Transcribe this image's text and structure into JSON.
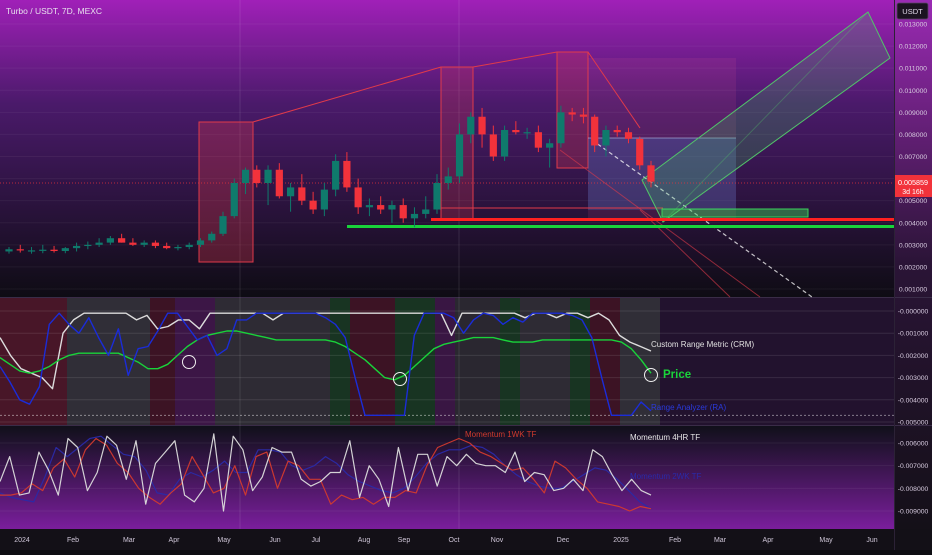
{
  "symbol_label": "Turbo / USDT, 7D, MEXC",
  "currency_button": "USDT",
  "price_badge": {
    "price": "0.005859",
    "countdown": "3d 16h"
  },
  "x_tick_labels": [
    "2024",
    "Feb",
    "Mar",
    "Apr",
    "May",
    "Jun",
    "Jul",
    "Aug",
    "Sep",
    "Oct",
    "Nov",
    "Dec",
    "2025",
    "Feb",
    "Mar",
    "Apr",
    "May",
    "Jun"
  ],
  "panels": {
    "price": {
      "y_tick_labels": [
        "0.013000",
        "0.012000",
        "0.011000",
        "0.010000",
        "0.009000",
        "0.008000",
        "0.007000",
        "0.006000",
        "0.005000",
        "0.004000",
        "0.003000",
        "0.002000",
        "0.001000"
      ]
    },
    "indicator1": {
      "y_tick_labels": [
        "-0.000000",
        "-0.001000",
        "-0.002000",
        "-0.003000",
        "-0.004000",
        "-0.005000"
      ],
      "labels": {
        "crm": "Custom Range Metric (CRM)",
        "price": "Price",
        "range_analyzer": "Range Analyzer (RA)"
      }
    },
    "indicator2": {
      "y_tick_labels": [
        "-0.006000",
        "-0.007000",
        "-0.008000",
        "-0.009000"
      ],
      "labels": {
        "momentum_1wk": "Momentum 1WK TF",
        "momentum_4hr": "Momentum 4HR TF",
        "momentum_2wk": "Momentum 2WK TF"
      }
    }
  },
  "colors": {
    "up": "#0f7a6c",
    "down": "#f2323b",
    "green_line": "#19d33a",
    "red_line": "#ff2020",
    "accent": "#9c27b0"
  },
  "chart_data": [
    {
      "type": "candlestick",
      "title": "Turbo / USDT, 7D, MEXC",
      "x_range": [
        "2024-01",
        "2025-06"
      ],
      "ylim": [
        0.0005,
        0.0135
      ],
      "last_price": 0.005859,
      "candles": [
        {
          "o": 0.0027,
          "h": 0.0029,
          "l": 0.0026,
          "c": 0.0028
        },
        {
          "o": 0.0028,
          "h": 0.003,
          "l": 0.00265,
          "c": 0.00275
        },
        {
          "o": 0.00275,
          "h": 0.0029,
          "l": 0.0026,
          "c": 0.00275
        },
        {
          "o": 0.00275,
          "h": 0.003,
          "l": 0.00262,
          "c": 0.00278
        },
        {
          "o": 0.00278,
          "h": 0.00295,
          "l": 0.00265,
          "c": 0.00272
        },
        {
          "o": 0.00272,
          "h": 0.0029,
          "l": 0.00262,
          "c": 0.00285
        },
        {
          "o": 0.00285,
          "h": 0.0031,
          "l": 0.0027,
          "c": 0.00295
        },
        {
          "o": 0.00295,
          "h": 0.00315,
          "l": 0.0028,
          "c": 0.003
        },
        {
          "o": 0.003,
          "h": 0.0033,
          "l": 0.0029,
          "c": 0.0031
        },
        {
          "o": 0.0031,
          "h": 0.0034,
          "l": 0.003,
          "c": 0.0033
        },
        {
          "o": 0.0033,
          "h": 0.0035,
          "l": 0.0031,
          "c": 0.0031
        },
        {
          "o": 0.0031,
          "h": 0.0033,
          "l": 0.00295,
          "c": 0.003
        },
        {
          "o": 0.003,
          "h": 0.0032,
          "l": 0.0029,
          "c": 0.0031
        },
        {
          "o": 0.0031,
          "h": 0.0032,
          "l": 0.00285,
          "c": 0.00295
        },
        {
          "o": 0.00295,
          "h": 0.0031,
          "l": 0.0028,
          "c": 0.00285
        },
        {
          "o": 0.00285,
          "h": 0.003,
          "l": 0.00275,
          "c": 0.0029
        },
        {
          "o": 0.0029,
          "h": 0.0031,
          "l": 0.0028,
          "c": 0.003
        },
        {
          "o": 0.003,
          "h": 0.0033,
          "l": 0.0029,
          "c": 0.0032
        },
        {
          "o": 0.0032,
          "h": 0.0036,
          "l": 0.0031,
          "c": 0.0035
        },
        {
          "o": 0.0035,
          "h": 0.0045,
          "l": 0.0034,
          "c": 0.0043
        },
        {
          "o": 0.0043,
          "h": 0.006,
          "l": 0.0042,
          "c": 0.0058
        },
        {
          "o": 0.0058,
          "h": 0.0065,
          "l": 0.0053,
          "c": 0.0064
        },
        {
          "o": 0.0064,
          "h": 0.0066,
          "l": 0.0056,
          "c": 0.0058
        },
        {
          "o": 0.0058,
          "h": 0.0066,
          "l": 0.0048,
          "c": 0.0064
        },
        {
          "o": 0.0064,
          "h": 0.0067,
          "l": 0.0051,
          "c": 0.0052
        },
        {
          "o": 0.0052,
          "h": 0.0058,
          "l": 0.0045,
          "c": 0.0056
        },
        {
          "o": 0.0056,
          "h": 0.0062,
          "l": 0.0048,
          "c": 0.005
        },
        {
          "o": 0.005,
          "h": 0.0054,
          "l": 0.0044,
          "c": 0.0046
        },
        {
          "o": 0.0046,
          "h": 0.0058,
          "l": 0.0043,
          "c": 0.0055
        },
        {
          "o": 0.0055,
          "h": 0.0071,
          "l": 0.0052,
          "c": 0.0068
        },
        {
          "o": 0.0068,
          "h": 0.0072,
          "l": 0.0054,
          "c": 0.0056
        },
        {
          "o": 0.0056,
          "h": 0.006,
          "l": 0.0044,
          "c": 0.0047
        },
        {
          "o": 0.0047,
          "h": 0.0051,
          "l": 0.0043,
          "c": 0.0048
        },
        {
          "o": 0.0048,
          "h": 0.0052,
          "l": 0.0044,
          "c": 0.0046
        },
        {
          "o": 0.0046,
          "h": 0.005,
          "l": 0.004,
          "c": 0.0048
        },
        {
          "o": 0.0048,
          "h": 0.0051,
          "l": 0.004,
          "c": 0.0042
        },
        {
          "o": 0.0042,
          "h": 0.0047,
          "l": 0.0038,
          "c": 0.0044
        },
        {
          "o": 0.0044,
          "h": 0.0052,
          "l": 0.0042,
          "c": 0.0046
        },
        {
          "o": 0.0046,
          "h": 0.0062,
          "l": 0.0044,
          "c": 0.0058
        },
        {
          "o": 0.0058,
          "h": 0.0065,
          "l": 0.0055,
          "c": 0.0061
        },
        {
          "o": 0.0061,
          "h": 0.0085,
          "l": 0.0058,
          "c": 0.008
        },
        {
          "o": 0.008,
          "h": 0.009,
          "l": 0.0076,
          "c": 0.0088
        },
        {
          "o": 0.0088,
          "h": 0.0092,
          "l": 0.0074,
          "c": 0.008
        },
        {
          "o": 0.008,
          "h": 0.0084,
          "l": 0.0068,
          "c": 0.007
        },
        {
          "o": 0.007,
          "h": 0.0084,
          "l": 0.0068,
          "c": 0.0082
        },
        {
          "o": 0.0082,
          "h": 0.0086,
          "l": 0.008,
          "c": 0.0081
        },
        {
          "o": 0.0081,
          "h": 0.0083,
          "l": 0.0078,
          "c": 0.0081
        },
        {
          "o": 0.0081,
          "h": 0.0084,
          "l": 0.0072,
          "c": 0.0074
        },
        {
          "o": 0.0074,
          "h": 0.0078,
          "l": 0.0065,
          "c": 0.0076
        },
        {
          "o": 0.0076,
          "h": 0.0093,
          "l": 0.0074,
          "c": 0.009
        },
        {
          "o": 0.009,
          "h": 0.0092,
          "l": 0.0086,
          "c": 0.0089
        },
        {
          "o": 0.0089,
          "h": 0.0092,
          "l": 0.0085,
          "c": 0.0088
        },
        {
          "o": 0.0088,
          "h": 0.0089,
          "l": 0.0072,
          "c": 0.0075
        },
        {
          "o": 0.0075,
          "h": 0.0084,
          "l": 0.007,
          "c": 0.0082
        },
        {
          "o": 0.0082,
          "h": 0.0084,
          "l": 0.0079,
          "c": 0.0081
        },
        {
          "o": 0.0081,
          "h": 0.0083,
          "l": 0.0076,
          "c": 0.0078
        },
        {
          "o": 0.0078,
          "h": 0.0079,
          "l": 0.0064,
          "c": 0.0066
        },
        {
          "o": 0.0066,
          "h": 0.0068,
          "l": 0.0056,
          "c": 0.00586
        }
      ],
      "horizontal_levels": [
        {
          "name": "support",
          "value": 0.00384,
          "color": "#19d33a"
        },
        {
          "name": "resistance",
          "value": 0.00418,
          "color": "#ff2020"
        },
        {
          "name": "current",
          "value": 0.005859,
          "color": "#f2323b"
        }
      ]
    },
    {
      "type": "line",
      "title": "Custom Range Metric (CRM)",
      "ylim": [
        -0.0052,
        0.0003
      ],
      "series": [
        {
          "name": "Custom Range Metric (CRM)",
          "color": "#dcdcdc",
          "values": [
            -0.0012,
            -0.002,
            -0.0026,
            -0.0028,
            -0.003,
            -0.0035,
            -0.001,
            -0.0004,
            -0.0001,
            -0.0001,
            -0.0001,
            -0.0001,
            -0.0001,
            -0.0004,
            -0.0002,
            -0.0008,
            -0.0007,
            -0.0004,
            -0.0004,
            -0.0008,
            -0.0001,
            -0.0001,
            -0.0001,
            -0.0001,
            -0.0001,
            -0.0001,
            -0.0004,
            -0.0001,
            -0.0001,
            -0.0001,
            -0.0001,
            -0.0001,
            -0.0001,
            -0.0001,
            -0.0001,
            -0.0001,
            -0.0001,
            -0.0001,
            -0.0001,
            -0.0001,
            -0.0001,
            -0.0001,
            -0.0001,
            -0.0011,
            -0.0001,
            -0.0001,
            -0.0001,
            -0.0001,
            -0.0001,
            -0.0001,
            -0.0003,
            -0.0001,
            -0.0001,
            -0.0003,
            -0.0001,
            -0.0001,
            -0.0003,
            -0.0001,
            -0.0004,
            -0.0011,
            -0.0014,
            -0.0016,
            -0.0018
          ]
        },
        {
          "name": "Price",
          "color": "#19d33a",
          "values": [
            -0.0021,
            -0.0024,
            -0.0027,
            -0.0028,
            -0.0027,
            -0.0025,
            -0.0022,
            -0.002,
            -0.0019,
            -0.0019,
            -0.0019,
            -0.0019,
            -0.0019,
            -0.0021,
            -0.0023,
            -0.0026,
            -0.0026,
            -0.0024,
            -0.002,
            -0.0016,
            -0.0013,
            -0.0011,
            -0.001,
            -0.0009,
            -0.0009,
            -0.001,
            -0.0011,
            -0.0012,
            -0.0013,
            -0.0013,
            -0.0013,
            -0.0013,
            -0.0013,
            -0.0013,
            -0.0014,
            -0.0016,
            -0.0019,
            -0.0022,
            -0.0026,
            -0.003,
            -0.0031,
            -0.0029,
            -0.0025,
            -0.0021,
            -0.0017,
            -0.0015,
            -0.0014,
            -0.0013,
            -0.0012,
            -0.0012,
            -0.0012,
            -0.0013,
            -0.0014,
            -0.0014,
            -0.0014,
            -0.0013,
            -0.0013,
            -0.0013,
            -0.0013,
            -0.0013,
            -0.0013,
            -0.0013,
            -0.0013,
            -0.0014,
            -0.0017,
            -0.0022,
            -0.0028
          ]
        },
        {
          "name": "Range Analyzer (RA)",
          "color": "#1b2cd8",
          "values": [
            -0.0025,
            -0.0032,
            -0.004,
            -0.0042,
            -0.0034,
            -0.0006,
            -0.0001,
            -0.0006,
            -0.001,
            -0.0003,
            -0.0012,
            -0.002,
            -0.0008,
            -0.0029,
            -0.0017,
            -0.0016,
            -0.0009,
            -0.0001,
            -0.0001,
            -0.0007,
            -0.0013,
            -0.0011,
            -0.002,
            -0.0017,
            -0.0004,
            -0.0004,
            -0.0001,
            -0.0001,
            -0.0001,
            -0.0001,
            -0.0001,
            -0.0001,
            -0.0001,
            -0.0003,
            -0.0006,
            -0.0012,
            -0.003,
            -0.0047,
            -0.0047,
            -0.0047,
            -0.0047,
            -0.0047,
            -0.0011,
            -0.0001,
            -0.0001,
            -0.0001,
            -0.0003,
            -0.001,
            -0.0004,
            -0.0001,
            -0.0002,
            -0.0006,
            -0.0003,
            -0.0005,
            -0.0001,
            -0.0001,
            -0.0001,
            -0.0001,
            -0.0002,
            -0.0004,
            -0.0012,
            -0.003,
            -0.0047,
            -0.0047,
            -0.0047,
            -0.0041,
            -0.0045
          ]
        }
      ],
      "reference_levels": [
        -0.0047
      ]
    },
    {
      "type": "line",
      "title": "Momentum",
      "ylim": [
        -0.0093,
        -0.0052
      ],
      "series": [
        {
          "name": "Momentum 4HR TF",
          "color": "#dcdcdc",
          "values": [
            -0.0077,
            -0.0066,
            -0.0083,
            -0.0082,
            -0.0064,
            -0.0072,
            -0.0083,
            -0.0058,
            -0.0062,
            -0.0081,
            -0.0073,
            -0.0057,
            -0.0061,
            -0.0076,
            -0.0059,
            -0.0087,
            -0.0069,
            -0.0064,
            -0.0059,
            -0.0083,
            -0.0086,
            -0.008,
            -0.0056,
            -0.009,
            -0.0057,
            -0.0063,
            -0.0081,
            -0.0075,
            -0.0062,
            -0.0064,
            -0.0064,
            -0.0076,
            -0.0079,
            -0.0077,
            -0.0073,
            -0.0073,
            -0.0059,
            -0.0084,
            -0.007,
            -0.0076,
            -0.0088,
            -0.0062,
            -0.0081,
            -0.0065,
            -0.0065,
            -0.0079,
            -0.0066,
            -0.007,
            -0.0065,
            -0.0069,
            -0.007,
            -0.007,
            -0.0073,
            -0.0064,
            -0.0077,
            -0.0073,
            -0.0074,
            -0.0081,
            -0.008,
            -0.0076,
            -0.0081,
            -0.0063,
            -0.0066,
            -0.0074,
            -0.0081,
            -0.0076,
            -0.0081,
            -0.0083
          ]
        },
        {
          "name": "Momentum 1WK TF",
          "color": "#d23a2e",
          "values": [
            -0.0083,
            -0.0083,
            -0.0082,
            -0.0078,
            -0.0081,
            -0.0071,
            -0.0067,
            -0.0075,
            -0.0063,
            -0.0058,
            -0.0061,
            -0.0069,
            -0.0073,
            -0.008,
            -0.0084,
            -0.0087,
            -0.0082,
            -0.0078,
            -0.0066,
            -0.0074,
            -0.0082,
            -0.008,
            -0.007,
            -0.0083,
            -0.0066,
            -0.0064,
            -0.008,
            -0.0068,
            -0.007,
            -0.0076,
            -0.0076,
            -0.0087,
            -0.0083,
            -0.0085,
            -0.0084,
            -0.0087,
            -0.0084,
            -0.0084,
            -0.0081,
            -0.0082,
            -0.007,
            -0.0062,
            -0.006,
            -0.0058,
            -0.006,
            -0.0064,
            -0.0066,
            -0.0069,
            -0.0072,
            -0.0071,
            -0.0076,
            -0.0082,
            -0.0068,
            -0.0071,
            -0.0076,
            -0.008,
            -0.0086,
            -0.0087,
            -0.0088,
            -0.009,
            -0.0088,
            -0.0089
          ]
        },
        {
          "name": "Momentum 2WK TF",
          "color": "#2a2aa8",
          "values": [
            -0.0082,
            -0.0084,
            -0.0085,
            -0.0086,
            -0.0075,
            -0.0062,
            -0.0066,
            -0.0062,
            -0.0058,
            -0.0057,
            -0.0061,
            -0.0065,
            -0.0066,
            -0.0072,
            -0.0082,
            -0.0083,
            -0.0076,
            -0.0073,
            -0.0075,
            -0.0072,
            -0.0068,
            -0.0073,
            -0.0073,
            -0.0063,
            -0.0063,
            -0.0064,
            -0.007,
            -0.0072,
            -0.007,
            -0.0066,
            -0.0069,
            -0.0074,
            -0.0077,
            -0.0079,
            -0.0081,
            -0.0082,
            -0.008,
            -0.0075,
            -0.0069,
            -0.0065,
            -0.0063,
            -0.0063,
            -0.0061,
            -0.0062,
            -0.0065,
            -0.007,
            -0.0074,
            -0.0077,
            -0.0079,
            -0.008,
            -0.008,
            -0.0077,
            -0.0074,
            -0.0071,
            -0.0072,
            -0.0076,
            -0.0081,
            -0.0086,
            -0.0089
          ]
        }
      ]
    }
  ]
}
